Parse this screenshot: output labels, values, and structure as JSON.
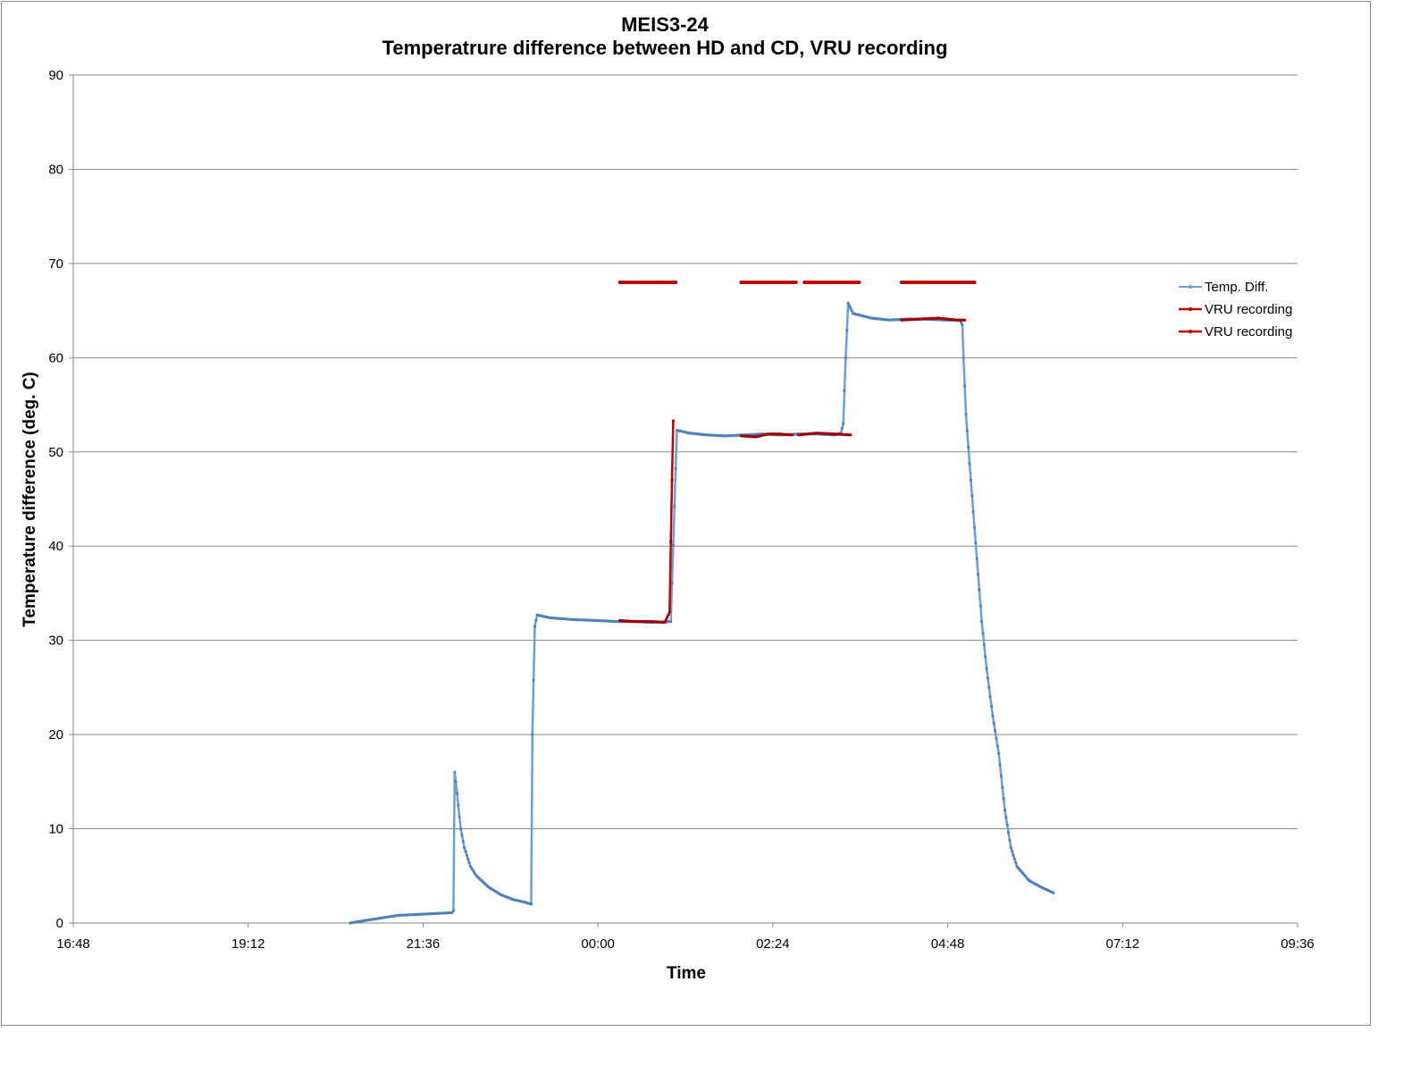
{
  "colors": {
    "temp_diff": "#6d9edb",
    "vru": "#c00000",
    "vru_markers": "#c00000",
    "grid": "#868686",
    "axis": "#868686"
  },
  "chart_data": {
    "type": "line",
    "title_line1": "MEIS3-24",
    "title_line2": "Temperatrure difference between HD and CD, VRU recording",
    "xlabel": "Time",
    "ylabel": "Temperature difference (deg. C)",
    "ylim": [
      0,
      90
    ],
    "yticks": [
      0,
      10,
      20,
      30,
      40,
      50,
      60,
      70,
      80,
      90
    ],
    "x_range_hours": [
      16.8,
      33.6
    ],
    "xtick_labels": [
      "16:48",
      "19:12",
      "21:36",
      "00:00",
      "02:24",
      "04:48",
      "07:12",
      "09:36"
    ],
    "grid": true,
    "legend_position": "right",
    "legend": [
      "Temp. Diff.",
      "VRU recording",
      "VRU recording"
    ],
    "series": [
      {
        "name": "Temp. Diff.",
        "points": [
          [
            "20:36",
            0.0
          ],
          [
            "20:50",
            0.3
          ],
          [
            "21:00",
            0.5
          ],
          [
            "21:15",
            0.8
          ],
          [
            "21:30",
            0.9
          ],
          [
            "21:45",
            1.0
          ],
          [
            "22:00",
            1.1
          ],
          [
            "22:01",
            1.3
          ],
          [
            "22:02",
            16.0
          ],
          [
            "22:03",
            15.0
          ],
          [
            "22:05",
            12.5
          ],
          [
            "22:07",
            10.0
          ],
          [
            "22:10",
            8.0
          ],
          [
            "22:15",
            6.0
          ],
          [
            "22:20",
            5.0
          ],
          [
            "22:30",
            3.8
          ],
          [
            "22:40",
            3.0
          ],
          [
            "22:50",
            2.5
          ],
          [
            "23:00",
            2.2
          ],
          [
            "23:05",
            2.0
          ],
          [
            "23:06",
            20.0
          ],
          [
            "23:08",
            31.5
          ],
          [
            "23:10",
            32.7
          ],
          [
            "23:20",
            32.4
          ],
          [
            "23:40",
            32.2
          ],
          [
            "00:00",
            32.1
          ],
          [
            "00:15",
            32.0
          ],
          [
            "00:30",
            32.0
          ],
          [
            "00:45",
            31.9
          ],
          [
            "01:00",
            32.0
          ],
          [
            "01:05",
            52.3
          ],
          [
            "01:15",
            52.0
          ],
          [
            "01:30",
            51.8
          ],
          [
            "01:45",
            51.7
          ],
          [
            "02:00",
            51.8
          ],
          [
            "02:15",
            51.9
          ],
          [
            "02:30",
            51.8
          ],
          [
            "02:45",
            51.9
          ],
          [
            "03:00",
            51.9
          ],
          [
            "03:15",
            51.8
          ],
          [
            "03:20",
            52.0
          ],
          [
            "03:22",
            53.0
          ],
          [
            "03:24",
            60.0
          ],
          [
            "03:26",
            65.8
          ],
          [
            "03:30",
            64.7
          ],
          [
            "03:45",
            64.2
          ],
          [
            "04:00",
            64.0
          ],
          [
            "04:15",
            64.1
          ],
          [
            "04:30",
            64.1
          ],
          [
            "04:45",
            64.0
          ],
          [
            "04:58",
            64.0
          ],
          [
            "05:00",
            63.5
          ],
          [
            "05:01",
            60.0
          ],
          [
            "05:03",
            54.0
          ],
          [
            "05:05",
            50.5
          ],
          [
            "05:07",
            47.0
          ],
          [
            "05:10",
            42.0
          ],
          [
            "05:13",
            37.0
          ],
          [
            "05:16",
            32.0
          ],
          [
            "05:20",
            27.0
          ],
          [
            "05:25",
            22.0
          ],
          [
            "05:30",
            18.0
          ],
          [
            "05:35",
            12.0
          ],
          [
            "05:40",
            8.0
          ],
          [
            "05:45",
            6.0
          ],
          [
            "05:55",
            4.5
          ],
          [
            "06:05",
            3.8
          ],
          [
            "06:15",
            3.2
          ]
        ]
      },
      {
        "name": "VRU recording",
        "segments": [
          [
            [
              "00:18",
              32.1
            ],
            [
              "00:30",
              32.0
            ],
            [
              "00:45",
              32.0
            ],
            [
              "00:55",
              31.9
            ],
            [
              "00:59",
              33.0
            ],
            [
              "01:00",
              40.5
            ],
            [
              "01:01",
              47.0
            ],
            [
              "01:02",
              53.3
            ]
          ],
          [
            [
              "01:58",
              51.7
            ],
            [
              "02:10",
              51.6
            ],
            [
              "02:20",
              51.9
            ],
            [
              "02:30",
              51.9
            ],
            [
              "02:40",
              51.8
            ]
          ],
          [
            [
              "02:45",
              51.8
            ],
            [
              "03:00",
              52.0
            ],
            [
              "03:15",
              51.9
            ],
            [
              "03:28",
              51.8
            ]
          ],
          [
            [
              "04:10",
              64.0
            ],
            [
              "04:25",
              64.1
            ],
            [
              "04:40",
              64.2
            ],
            [
              "04:55",
              64.0
            ],
            [
              "05:02",
              64.0
            ]
          ]
        ]
      },
      {
        "name": "VRU recording",
        "marker_level": 68,
        "segments": [
          [
            [
              "00:18",
              68
            ],
            [
              "01:04",
              68
            ]
          ],
          [
            [
              "01:58",
              68
            ],
            [
              "02:43",
              68
            ]
          ],
          [
            [
              "02:50",
              68
            ],
            [
              "03:35",
              68
            ]
          ],
          [
            [
              "04:10",
              68
            ],
            [
              "05:10",
              68
            ]
          ]
        ]
      }
    ]
  }
}
